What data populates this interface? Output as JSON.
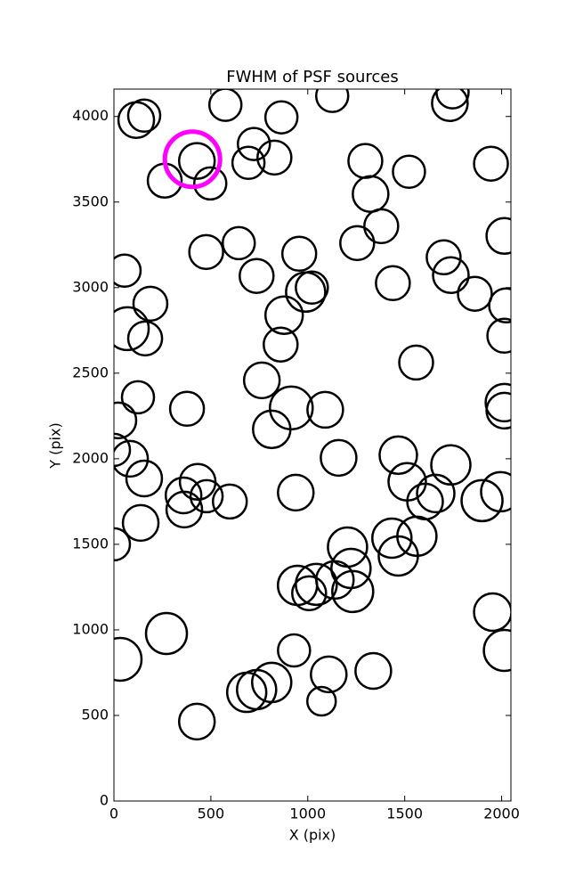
{
  "chart_data": {
    "type": "scatter",
    "title": "FWHM of PSF sources",
    "x_label": "X (pix)",
    "y_label": "Y (pix)",
    "xlim": [
      0,
      2048
    ],
    "ylim": [
      0,
      4160
    ],
    "xticks": [
      0,
      500,
      1000,
      1500,
      2000
    ],
    "yticks": [
      0,
      500,
      1000,
      1500,
      2000,
      2500,
      3000,
      3500,
      4000
    ],
    "series": [
      {
        "color": "#000000",
        "x": [
          115,
          156,
          575,
          864,
          1126,
          1747,
          1733,
          722,
          694,
          828,
          428,
          262,
          497,
          1297,
          1522,
          1945,
          1324,
          1379,
          1255,
          644,
          476,
          956,
          2014,
          55,
          736,
          1701,
          1738,
          1439,
          1021,
          989,
          1862,
          188,
          2023,
          69,
          878,
          161,
          860,
          2014,
          1559,
          763,
          124,
          377,
          915,
          1090,
          2014,
          2014,
          23,
          814,
          0,
          83,
          1159,
          1467,
          1738,
          156,
          1513,
          938,
          432,
          359,
          478,
          598,
          363,
          1660,
          1605,
          1899,
          1995,
          138,
          0,
          1434,
          1563,
          1467,
          1205,
          1223,
          1140,
          1044,
          947,
          1007,
          1232,
          1954,
          271,
          32,
          2014,
          929,
          1108,
          1338,
          814,
          736,
          685,
          1071,
          428
        ],
        "values": [
          3979,
          4005,
          4068,
          3995,
          4120,
          4141,
          4078,
          3839,
          3729,
          3760,
          3740,
          3625,
          3609,
          3740,
          3677,
          3724,
          3547,
          3359,
          3260,
          3260,
          3208,
          3198,
          3302,
          3099,
          3068,
          3177,
          3073,
          3026,
          3000,
          2974,
          2964,
          2906,
          2896,
          2760,
          2839,
          2703,
          2667,
          2719,
          2562,
          2458,
          2359,
          2292,
          2297,
          2286,
          2328,
          2281,
          2224,
          2172,
          2052,
          2000,
          2005,
          2021,
          1964,
          1885,
          1865,
          1802,
          1865,
          1786,
          1781,
          1750,
          1703,
          1797,
          1750,
          1755,
          1807,
          1625,
          1500,
          1536,
          1547,
          1432,
          1484,
          1359,
          1292,
          1266,
          1260,
          1214,
          1224,
          1104,
          979,
          828,
          880,
          880,
          740,
          760,
          693,
          651,
          635,
          583,
          464
        ],
        "sizes": [
          20,
          18,
          18,
          18,
          18,
          18,
          20,
          18,
          18,
          19,
          20,
          19,
          18,
          19,
          18,
          19,
          20,
          19,
          19,
          18,
          19,
          19,
          20,
          18,
          19,
          19,
          20,
          19,
          18,
          22,
          19,
          19,
          19,
          24,
          21,
          19,
          19,
          19,
          19,
          20,
          18,
          19,
          24,
          20,
          21,
          20,
          20,
          21,
          18,
          20,
          20,
          21,
          22,
          20,
          21,
          20,
          20,
          20,
          18,
          19,
          20,
          21,
          20,
          23,
          22,
          20,
          18,
          22,
          22,
          22,
          22,
          22,
          21,
          23,
          22,
          19,
          23,
          21,
          23,
          24,
          23,
          18,
          20,
          20,
          22,
          22,
          22,
          16,
          20
        ]
      },
      {
        "color": "#ff00ff",
        "x": [
          405
        ],
        "values": [
          3750
        ],
        "sizes": [
          31
        ]
      }
    ]
  }
}
